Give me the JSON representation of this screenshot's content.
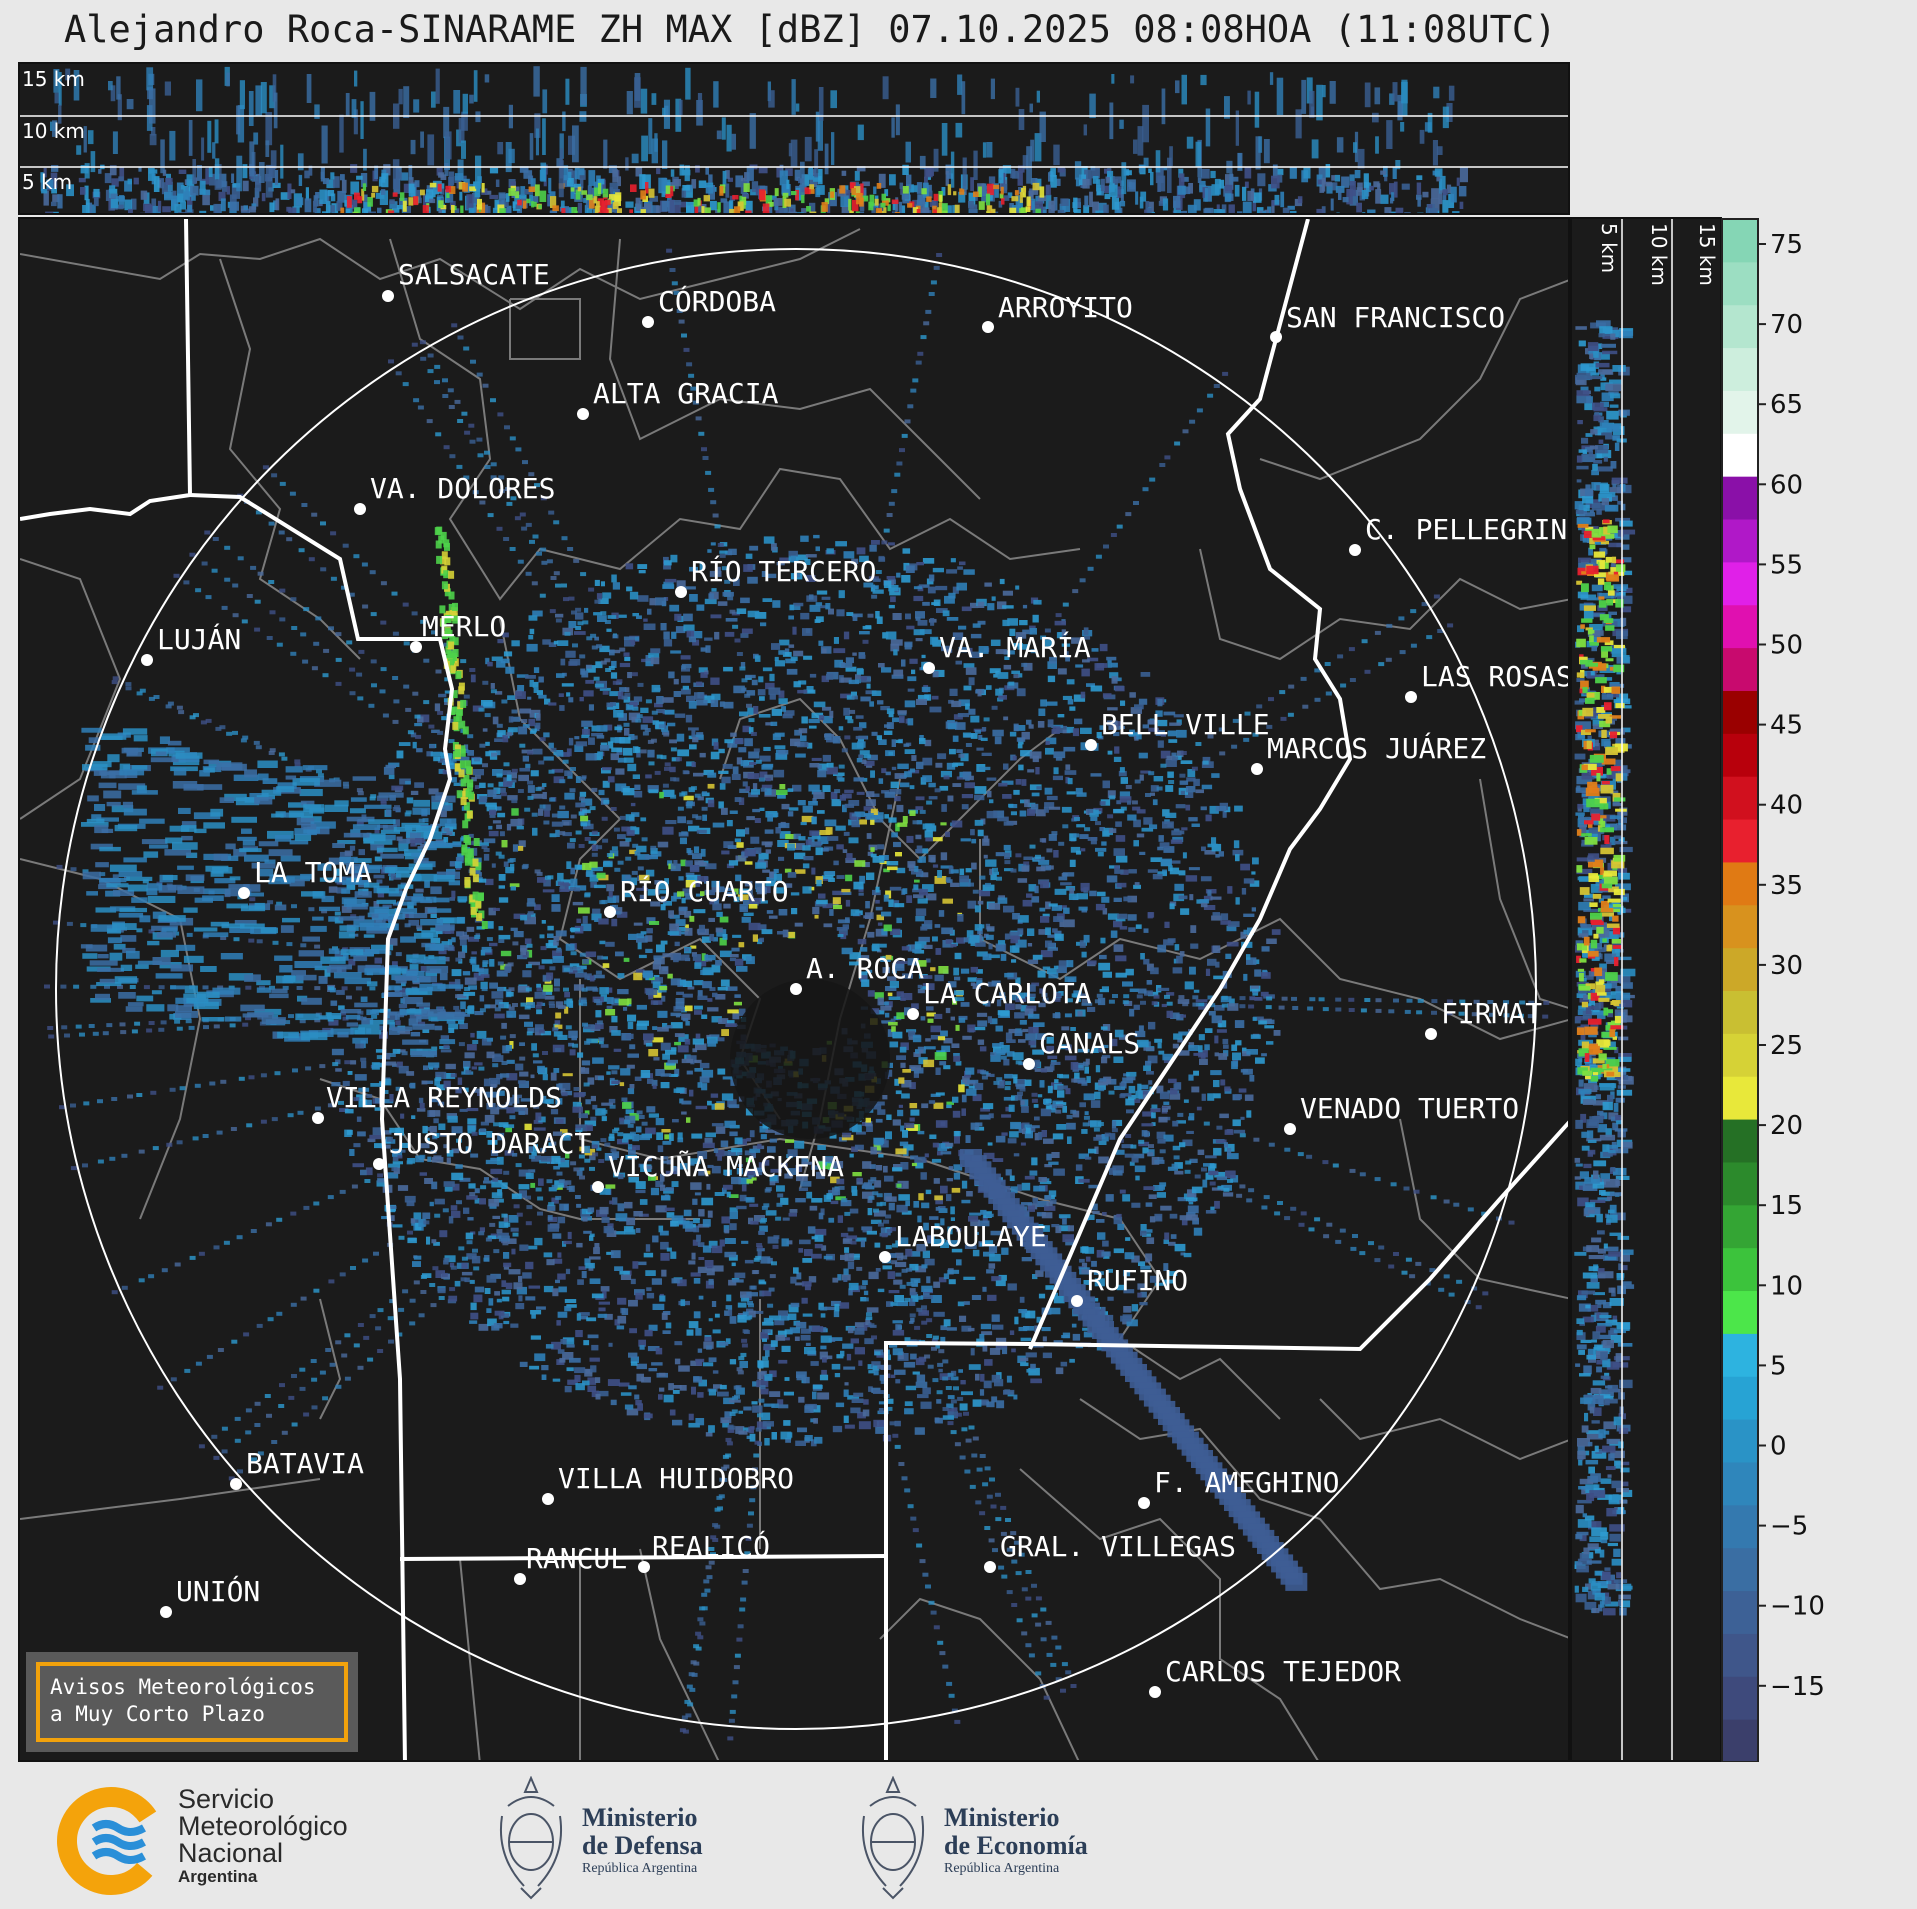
{
  "header": {
    "title": "Alejandro Roca-SINARAME ZH MAX [dBZ] 07.10.2025 08:08HOA (11:08UTC)"
  },
  "top_panel": {
    "height_labels": [
      "15 km",
      "10 km",
      "5 km"
    ]
  },
  "side_panel": {
    "height_labels": [
      "5 km",
      "10 km",
      "15 km"
    ]
  },
  "colorbar": {
    "ticks": [
      "75",
      "70",
      "65",
      "60",
      "55",
      "50",
      "45",
      "40",
      "35",
      "30",
      "25",
      "20",
      "15",
      "10",
      "5",
      "0",
      "−5",
      "−10",
      "−15"
    ],
    "colors": [
      "#3b3f6b",
      "#3e4a7c",
      "#3f568a",
      "#3d6196",
      "#3a6ea3",
      "#3479af",
      "#2f86bb",
      "#2a93c6",
      "#27a3d4",
      "#2db3e0",
      "#4ce64a",
      "#3cc33c",
      "#34a534",
      "#2c8a2c",
      "#257025",
      "#e8e83a",
      "#d6d236",
      "#c9bf32",
      "#cca828",
      "#d8921e",
      "#e07a14",
      "#e8202e",
      "#d1101e",
      "#b8000c",
      "#9a0000",
      "#c80a6e",
      "#e010b0",
      "#e020e8",
      "#b018c8",
      "#8a10a8",
      "#ffffff",
      "#e2f4ea",
      "#cdeedd",
      "#b4e6cf",
      "#9cdec2",
      "#85d6b5"
    ]
  },
  "cities": [
    {
      "name": "SALSACATE"
    },
    {
      "name": "CÓRDOBA"
    },
    {
      "name": "ARROYITO"
    },
    {
      "name": "SAN FRANCISCO"
    },
    {
      "name": "ALTA GRACIA"
    },
    {
      "name": "VA. DOLORES"
    },
    {
      "name": "C. PELLEGRINI"
    },
    {
      "name": "RÍO TERCERO"
    },
    {
      "name": "LUJÁN"
    },
    {
      "name": "MERLO"
    },
    {
      "name": "VA. MARÍA"
    },
    {
      "name": "LAS ROSAS"
    },
    {
      "name": "BELL VILLE"
    },
    {
      "name": "MARCOS JUÁREZ"
    },
    {
      "name": "LA TOMA"
    },
    {
      "name": "RÍO CUARTO"
    },
    {
      "name": "A. ROCA"
    },
    {
      "name": "LA CARLOTA"
    },
    {
      "name": "FIRMAT"
    },
    {
      "name": "CANALS"
    },
    {
      "name": "VILLA REYNOLDS"
    },
    {
      "name": "VENADO TUERTO"
    },
    {
      "name": "JUSTO DARACT"
    },
    {
      "name": "VICUÑA MACKENA"
    },
    {
      "name": "LABOULAYE"
    },
    {
      "name": "RUFINO"
    },
    {
      "name": "BATAVIA"
    },
    {
      "name": "VILLA HUIDOBRO"
    },
    {
      "name": "F. AMEGHINO"
    },
    {
      "name": "RANCUL"
    },
    {
      "name": "REALICÓ"
    },
    {
      "name": "GRAL. VILLEGAS"
    },
    {
      "name": "UNIÓN"
    },
    {
      "name": "CARLOS TEJEDOR"
    }
  ],
  "notice_box": {
    "line1": "Avisos Meteorológicos",
    "line2": "a Muy Corto Plazo"
  },
  "logos": {
    "smn_line1": "Servicio",
    "smn_line2": "Meteorológico",
    "smn_line3": "Nacional",
    "smn_line4": "Argentina",
    "defensa_line1": "Ministerio",
    "defensa_line2": "de Defensa",
    "defensa_line3": "República Argentina",
    "economia_line1": "Ministerio",
    "economia_line2": "de Economía",
    "economia_line3": "República Argentina"
  },
  "palette": {
    "background": "#1b1b1b",
    "boundary": "#ffffff",
    "department_lines": "#7a7a7a",
    "notice_border": "#f2a20c",
    "smn_orange": "#f4a30b",
    "smn_blue": "#2a8fd8"
  }
}
